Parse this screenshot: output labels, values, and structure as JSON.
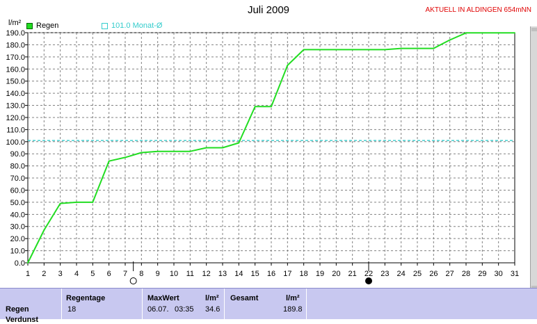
{
  "header": {
    "title": "Juli 2009",
    "station": "AKTUELL IN ALDINGEN 654mNN",
    "unit": "l/m²"
  },
  "legend": {
    "items": [
      {
        "label": "Regen",
        "color": "#22dd22"
      },
      {
        "label": "101.0 Monat-Ø",
        "color": "#33cccc"
      }
    ]
  },
  "chart_data": {
    "type": "line",
    "title": "Juli 2009",
    "ylabel": "l/m²",
    "xlim": [
      1,
      31
    ],
    "ylim": [
      0,
      190
    ],
    "y_ticks": [
      0,
      10,
      20,
      30,
      40,
      50,
      60,
      70,
      80,
      90,
      100,
      110,
      120,
      130,
      140,
      150,
      160,
      170,
      180,
      190
    ],
    "x_ticks": [
      1,
      2,
      3,
      4,
      5,
      6,
      7,
      8,
      9,
      10,
      11,
      12,
      13,
      14,
      15,
      16,
      17,
      18,
      19,
      20,
      21,
      22,
      23,
      24,
      25,
      26,
      27,
      28,
      29,
      30,
      31
    ],
    "grid": true,
    "series": [
      {
        "name": "Regen",
        "color": "#22dd22",
        "x": [
          1,
          2,
          3,
          4,
          5,
          6,
          7,
          8,
          9,
          10,
          11,
          12,
          13,
          14,
          15,
          16,
          17,
          18,
          19,
          20,
          21,
          22,
          23,
          24,
          25,
          26,
          27,
          28,
          29,
          30,
          31
        ],
        "values": [
          0,
          27,
          49,
          50,
          50,
          84,
          87,
          91,
          92,
          92,
          92,
          95,
          95,
          99,
          129,
          129,
          163,
          176,
          176,
          176,
          176,
          176,
          176,
          177,
          177,
          177,
          184,
          189.8,
          189.8,
          189.8,
          189.8
        ]
      }
    ],
    "reference_line": {
      "label": "101.0 Monat-Ø",
      "value": 101.0,
      "color": "#33cccc"
    },
    "moon_phases": [
      {
        "day": 7.5,
        "phase": "first-quarter"
      },
      {
        "day": 22,
        "phase": "new-moon"
      }
    ]
  },
  "table": {
    "row_label": "Regen",
    "row_label_next": "Verdunst",
    "regentage_header": "Regentage",
    "regentage_value": "18",
    "maxwert_header": "MaxWert",
    "maxwert_unit": "l/m²",
    "maxwert_date": "06.07.",
    "maxwert_time": "03:35",
    "maxwert_value": "34.6",
    "gesamt_header": "Gesamt",
    "gesamt_unit": "l/m²",
    "gesamt_value": "189.8"
  }
}
